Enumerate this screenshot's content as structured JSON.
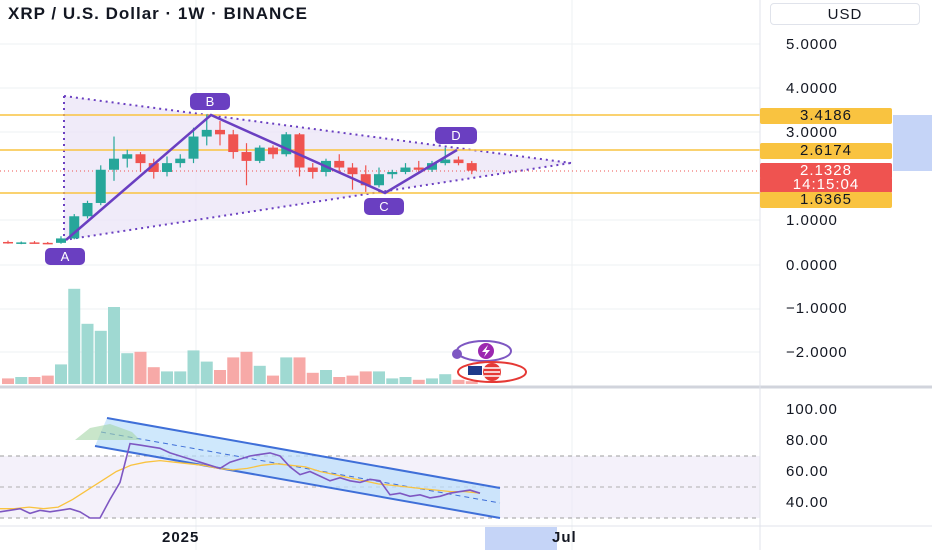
{
  "header": {
    "title": "XRP / U.S. Dollar · 1W · BINANCE",
    "currency": "USD"
  },
  "price_axis": {
    "ticks": [
      "5.0000",
      "4.0000",
      "3.0000",
      "1.0000",
      "0.0000",
      "−1.0000",
      "−2.0000"
    ]
  },
  "price_labels": {
    "resistance": "3.4186",
    "mid_level": "2.6174",
    "current_price": "2.1328",
    "countdown": "14:15:04",
    "support": "1.6365"
  },
  "rsi_axis": {
    "ticks": [
      "100.00",
      "80.00",
      "60.00",
      "40.00"
    ]
  },
  "time_axis": {
    "ticks": [
      "2025",
      "Jul"
    ]
  },
  "pattern": {
    "points": [
      "A",
      "B",
      "C",
      "D"
    ]
  },
  "colors": {
    "up": "#26a69a",
    "down": "#ef5350",
    "level_line": "#f9c340",
    "pattern": "#6a3fc1",
    "rsi_line": "#7e57c2",
    "rsi_ma": "#f9c340",
    "channel": "#3f6fd8"
  },
  "icons": [
    "lightning-badge-icon",
    "us-flag-badge-icon"
  ],
  "chart_data": {
    "type": "candlestick",
    "title": "XRP / U.S. Dollar · 1W · BINANCE",
    "price_levels": [
      3.4186,
      2.6174,
      1.6365
    ],
    "current_price": 2.1328,
    "candles": [
      {
        "o": 0.52,
        "h": 0.55,
        "l": 0.48,
        "c": 0.5
      },
      {
        "o": 0.5,
        "h": 0.53,
        "l": 0.47,
        "c": 0.51
      },
      {
        "o": 0.51,
        "h": 0.54,
        "l": 0.48,
        "c": 0.5
      },
      {
        "o": 0.5,
        "h": 0.52,
        "l": 0.47,
        "c": 0.49
      },
      {
        "o": 0.5,
        "h": 0.65,
        "l": 0.48,
        "c": 0.6
      },
      {
        "o": 0.6,
        "h": 1.15,
        "l": 0.58,
        "c": 1.1
      },
      {
        "o": 1.1,
        "h": 1.45,
        "l": 1.05,
        "c": 1.4
      },
      {
        "o": 1.4,
        "h": 2.25,
        "l": 1.35,
        "c": 2.15
      },
      {
        "o": 2.15,
        "h": 2.9,
        "l": 1.9,
        "c": 2.4
      },
      {
        "o": 2.4,
        "h": 2.6,
        "l": 2.2,
        "c": 2.5
      },
      {
        "o": 2.5,
        "h": 2.55,
        "l": 2.1,
        "c": 2.3
      },
      {
        "o": 2.3,
        "h": 2.4,
        "l": 1.95,
        "c": 2.1
      },
      {
        "o": 2.1,
        "h": 2.45,
        "l": 2.0,
        "c": 2.3
      },
      {
        "o": 2.3,
        "h": 2.5,
        "l": 2.2,
        "c": 2.4
      },
      {
        "o": 2.4,
        "h": 3.1,
        "l": 2.3,
        "c": 2.9
      },
      {
        "o": 2.9,
        "h": 3.4,
        "l": 2.7,
        "c": 3.05
      },
      {
        "o": 3.05,
        "h": 3.25,
        "l": 2.7,
        "c": 2.95
      },
      {
        "o": 2.95,
        "h": 3.05,
        "l": 2.4,
        "c": 2.55
      },
      {
        "o": 2.55,
        "h": 2.75,
        "l": 1.8,
        "c": 2.35
      },
      {
        "o": 2.35,
        "h": 2.7,
        "l": 2.3,
        "c": 2.65
      },
      {
        "o": 2.65,
        "h": 2.7,
        "l": 2.4,
        "c": 2.5
      },
      {
        "o": 2.5,
        "h": 3.0,
        "l": 2.45,
        "c": 2.95
      },
      {
        "o": 2.95,
        "h": 2.98,
        "l": 2.0,
        "c": 2.2
      },
      {
        "o": 2.2,
        "h": 2.3,
        "l": 1.95,
        "c": 2.1
      },
      {
        "o": 2.1,
        "h": 2.4,
        "l": 2.0,
        "c": 2.35
      },
      {
        "o": 2.35,
        "h": 2.5,
        "l": 2.1,
        "c": 2.2
      },
      {
        "o": 2.2,
        "h": 2.3,
        "l": 1.7,
        "c": 2.05
      },
      {
        "o": 2.05,
        "h": 2.25,
        "l": 1.65,
        "c": 1.8
      },
      {
        "o": 1.8,
        "h": 2.2,
        "l": 1.75,
        "c": 2.05
      },
      {
        "o": 2.05,
        "h": 2.15,
        "l": 1.95,
        "c": 2.1
      },
      {
        "o": 2.1,
        "h": 2.3,
        "l": 2.05,
        "c": 2.2
      },
      {
        "o": 2.2,
        "h": 2.35,
        "l": 2.1,
        "c": 2.15
      },
      {
        "o": 2.15,
        "h": 2.35,
        "l": 2.1,
        "c": 2.3
      },
      {
        "o": 2.3,
        "h": 2.65,
        "l": 2.25,
        "c": 2.38
      },
      {
        "o": 2.38,
        "h": 2.45,
        "l": 2.25,
        "c": 2.3
      },
      {
        "o": 2.3,
        "h": 2.35,
        "l": 2.05,
        "c": 2.13
      }
    ],
    "volume": [
      4,
      5,
      5,
      6,
      14,
      68,
      43,
      38,
      55,
      22,
      23,
      12,
      9,
      9,
      24,
      16,
      10,
      19,
      23,
      13,
      6,
      19,
      19,
      8,
      10,
      5,
      6,
      9,
      9,
      4,
      5,
      3,
      4,
      7,
      3,
      2
    ],
    "rsi": [
      44,
      45,
      46,
      43,
      45,
      44,
      45,
      46,
      44,
      40,
      40,
      52,
      63,
      88,
      87,
      86,
      85,
      82,
      80,
      78,
      76,
      74,
      72,
      76,
      78,
      80,
      81,
      82,
      80,
      73,
      68,
      70,
      67,
      64,
      66,
      64,
      63,
      65,
      64,
      55,
      56,
      54,
      55,
      53,
      54,
      56,
      57,
      58,
      56
    ],
    "rsi_ma": [
      46,
      46,
      47,
      46,
      47,
      52,
      58,
      64,
      70,
      74,
      76,
      77,
      76,
      75,
      74,
      72,
      71,
      72,
      74,
      75,
      74,
      73,
      70,
      68,
      66,
      64,
      62,
      61,
      60,
      59,
      58,
      57,
      57,
      56
    ],
    "rsi_ylim": [
      30,
      100
    ]
  }
}
